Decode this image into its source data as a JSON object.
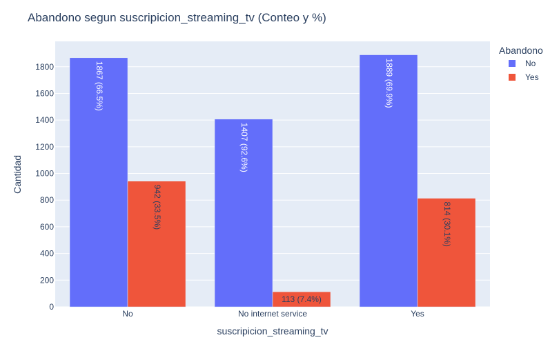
{
  "chart_data": {
    "type": "bar",
    "title": "Abandono segun suscripicion_streaming_tv (Conteo y %)",
    "xlabel": "suscripicion_streaming_tv",
    "ylabel": "Cantidad",
    "categories": [
      "No",
      "No internet service",
      "Yes"
    ],
    "ylim": [
      0,
      1990
    ],
    "yticks": [
      0,
      200,
      400,
      600,
      800,
      1000,
      1200,
      1400,
      1600,
      1800
    ],
    "grid": true,
    "legend_title": "Abandono",
    "legend_position": "top-right",
    "series": [
      {
        "name": "No",
        "color": "#636efa",
        "values": [
          1867,
          1407,
          1889
        ],
        "labels": [
          "1867 (66.5%)",
          "1407 (92.6%)",
          "1889 (69.9%)"
        ],
        "label_color": "#ffffff"
      },
      {
        "name": "Yes",
        "color": "#ef553b",
        "values": [
          942,
          113,
          814
        ],
        "labels": [
          "942 (33.5%)",
          "113 (7.4%)",
          "814 (30.1%)"
        ],
        "label_color": "#2a3f5f"
      }
    ],
    "plot_background": "#e5ecf6"
  }
}
